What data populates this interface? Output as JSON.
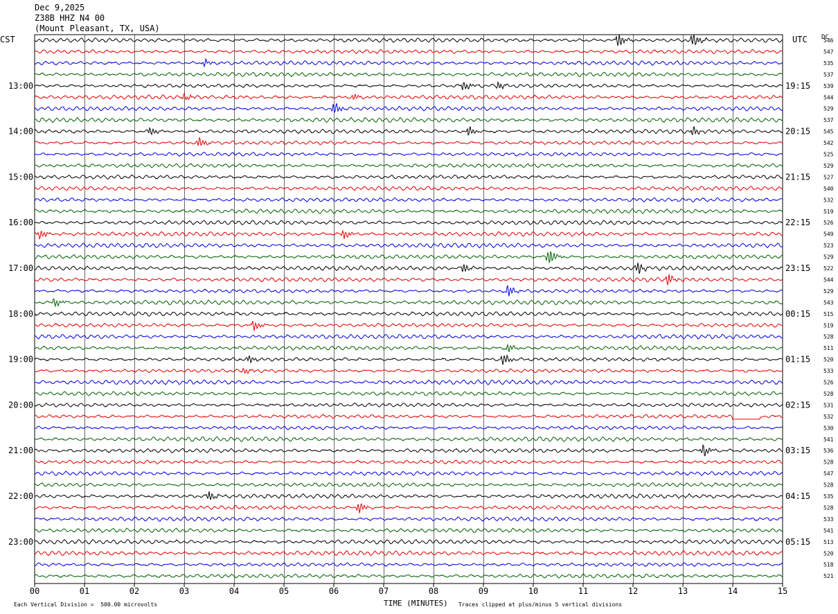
{
  "header": {
    "date": "Dec 9,2025",
    "station": "Z38B HHZ N4 00",
    "location": "(Mount Pleasant, TX, USA)"
  },
  "left_tz": "CST",
  "right_tz": "UTC",
  "dc_header": "DC",
  "footer": {
    "left": "Each Vertical Division =  500.00 microvolts",
    "right": "Traces clipped at plus/minus 5 vertical divisions"
  },
  "colors": {
    "trace_cycle": [
      "#000000",
      "#e00000",
      "#0000e0",
      "#006000"
    ],
    "grid": "#000000"
  },
  "chart_data": {
    "type": "line",
    "title": "Dec 9,2025  Z38B HHZ N4 00  (Mount Pleasant, TX, USA)",
    "xlabel": "TIME (MINUTES)",
    "x_ticks": [
      "00",
      "01",
      "02",
      "03",
      "04",
      "05",
      "06",
      "07",
      "08",
      "09",
      "10",
      "11",
      "12",
      "13",
      "14",
      "15"
    ],
    "xlim": [
      0,
      15
    ],
    "left_hour_labels": [
      "13:00",
      "14:00",
      "15:00",
      "16:00",
      "17:00",
      "18:00",
      "19:00",
      "20:00",
      "21:00",
      "22:00",
      "23:00"
    ],
    "right_hour_labels": [
      "19:15",
      "20:15",
      "21:15",
      "22:15",
      "23:15",
      "00:15",
      "01:15",
      "02:15",
      "03:15",
      "04:15",
      "05:15"
    ],
    "dc_offsets": [
      546,
      547,
      535,
      537,
      539,
      544,
      529,
      537,
      545,
      542,
      525,
      529,
      527,
      540,
      532,
      519,
      526,
      549,
      523,
      529,
      522,
      544,
      529,
      543,
      515,
      519,
      528,
      511,
      520,
      533,
      526,
      528,
      531,
      532,
      530,
      541,
      536,
      528,
      547,
      528,
      535,
      528,
      533,
      541,
      513,
      520,
      518,
      521
    ],
    "events": [
      {
        "trace": 0,
        "minute": 11.7,
        "amp": 2.4
      },
      {
        "trace": 0,
        "minute": 13.2,
        "amp": 2.2
      },
      {
        "trace": 2,
        "minute": 3.4,
        "amp": 1.3
      },
      {
        "trace": 4,
        "minute": 8.6,
        "amp": 1.6
      },
      {
        "trace": 4,
        "minute": 9.3,
        "amp": 1.2
      },
      {
        "trace": 5,
        "minute": 3.0,
        "amp": 1.1
      },
      {
        "trace": 5,
        "minute": 6.4,
        "amp": 1.1
      },
      {
        "trace": 6,
        "minute": 6.0,
        "amp": 2.0
      },
      {
        "trace": 8,
        "minute": 2.3,
        "amp": 1.4
      },
      {
        "trace": 8,
        "minute": 8.7,
        "amp": 1.5
      },
      {
        "trace": 8,
        "minute": 13.2,
        "amp": 1.4
      },
      {
        "trace": 9,
        "minute": 3.3,
        "amp": 1.6
      },
      {
        "trace": 17,
        "minute": 0.1,
        "amp": 1.5
      },
      {
        "trace": 17,
        "minute": 6.2,
        "amp": 1.2
      },
      {
        "trace": 19,
        "minute": 10.3,
        "amp": 3.0
      },
      {
        "trace": 20,
        "minute": 8.6,
        "amp": 1.3
      },
      {
        "trace": 20,
        "minute": 12.1,
        "amp": 1.7
      },
      {
        "trace": 21,
        "minute": 12.7,
        "amp": 1.8
      },
      {
        "trace": 22,
        "minute": 9.5,
        "amp": 2.0
      },
      {
        "trace": 23,
        "minute": 0.4,
        "amp": 1.3
      },
      {
        "trace": 25,
        "minute": 4.4,
        "amp": 1.4
      },
      {
        "trace": 27,
        "minute": 9.5,
        "amp": 1.3
      },
      {
        "trace": 28,
        "minute": 9.4,
        "amp": 1.9
      },
      {
        "trace": 28,
        "minute": 4.3,
        "amp": 1.1
      },
      {
        "trace": 29,
        "minute": 4.2,
        "amp": 1.0
      },
      {
        "trace": 36,
        "minute": 13.4,
        "amp": 1.9
      },
      {
        "trace": 40,
        "minute": 3.5,
        "amp": 1.3
      },
      {
        "trace": 41,
        "minute": 6.5,
        "amp": 1.8
      }
    ],
    "flat_segments": [
      {
        "trace": 33,
        "from_minute": 14.0,
        "to_minute": 14.6
      }
    ],
    "ylabel": ""
  }
}
